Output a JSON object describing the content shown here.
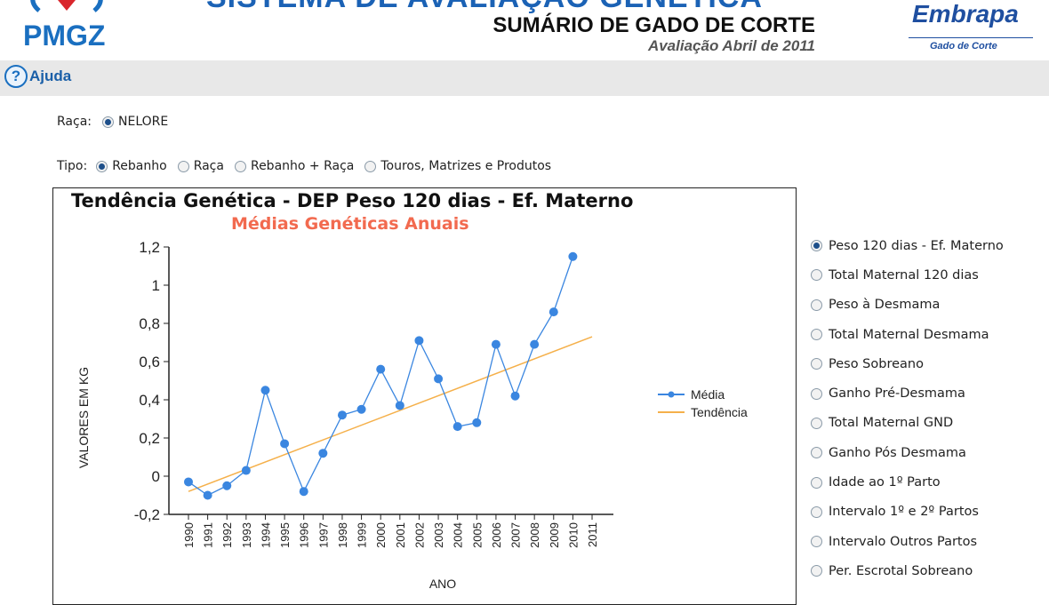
{
  "header": {
    "logo_left": "PMGZ",
    "title": "SISTEMA DE AVALIAÇÃO GENÉTICA",
    "subtitle": "SUMÁRIO DE GADO DE CORTE",
    "evaluation": "Avaliação Abril de 2011",
    "logo_right": "Embrapa",
    "logo_right_sub": "Gado de Corte"
  },
  "toolbar": {
    "help_label": "Ajuda",
    "help_icon": "question-circle-icon"
  },
  "filters": {
    "raca_label": "Raça:",
    "raca_options": [
      {
        "label": "NELORE",
        "selected": true
      }
    ],
    "tipo_label": "Tipo:",
    "tipo_options": [
      {
        "label": "Rebanho",
        "selected": true
      },
      {
        "label": "Raça",
        "selected": false
      },
      {
        "label": "Rebanho + Raça",
        "selected": false
      },
      {
        "label": "Touros, Matrizes e Produtos",
        "selected": false
      }
    ]
  },
  "traits": [
    {
      "label": "Peso 120 dias - Ef. Materno",
      "selected": true
    },
    {
      "label": "Total Maternal 120 dias",
      "selected": false
    },
    {
      "label": "Peso à Desmama",
      "selected": false
    },
    {
      "label": "Total Maternal Desmama",
      "selected": false
    },
    {
      "label": "Peso Sobreano",
      "selected": false
    },
    {
      "label": "Ganho Pré-Desmama",
      "selected": false
    },
    {
      "label": "Total Maternal GND",
      "selected": false
    },
    {
      "label": "Ganho Pós Desmama",
      "selected": false
    },
    {
      "label": "Idade ao 1º Parto",
      "selected": false
    },
    {
      "label": "Intervalo 1º e 2º Partos",
      "selected": false
    },
    {
      "label": "Intervalo Outros Partos",
      "selected": false
    },
    {
      "label": "Per. Escrotal Sobreano",
      "selected": false
    }
  ],
  "chart_data": {
    "type": "line",
    "title": "Tendência Genética - DEP Peso 120 dias - Ef. Materno",
    "subtitle": "Médias Genéticas Anuais",
    "xlabel": "ANO",
    "ylabel": "VALORES EM KG",
    "ylim": [
      -0.2,
      1.2
    ],
    "yticks": [
      "-0,2",
      "0",
      "0,2",
      "0,4",
      "0,6",
      "0,8",
      "1",
      "1,2"
    ],
    "x": [
      1990,
      1991,
      1992,
      1993,
      1994,
      1995,
      1996,
      1997,
      1998,
      1999,
      2000,
      2001,
      2002,
      2003,
      2004,
      2005,
      2006,
      2007,
      2008,
      2009,
      2010,
      2011
    ],
    "series": [
      {
        "name": "Média",
        "color": "#3a86e0",
        "values": [
          -0.03,
          -0.1,
          -0.05,
          0.03,
          0.45,
          0.17,
          -0.08,
          0.12,
          0.32,
          0.35,
          0.56,
          0.37,
          0.71,
          0.51,
          0.26,
          0.28,
          0.69,
          0.42,
          0.69,
          0.86,
          1.15,
          null
        ]
      },
      {
        "name": "Tendência",
        "color": "#f5b04a",
        "start": [
          1990,
          -0.08
        ],
        "end": [
          2011,
          0.73
        ]
      }
    ],
    "legend": "right",
    "grid": false
  }
}
